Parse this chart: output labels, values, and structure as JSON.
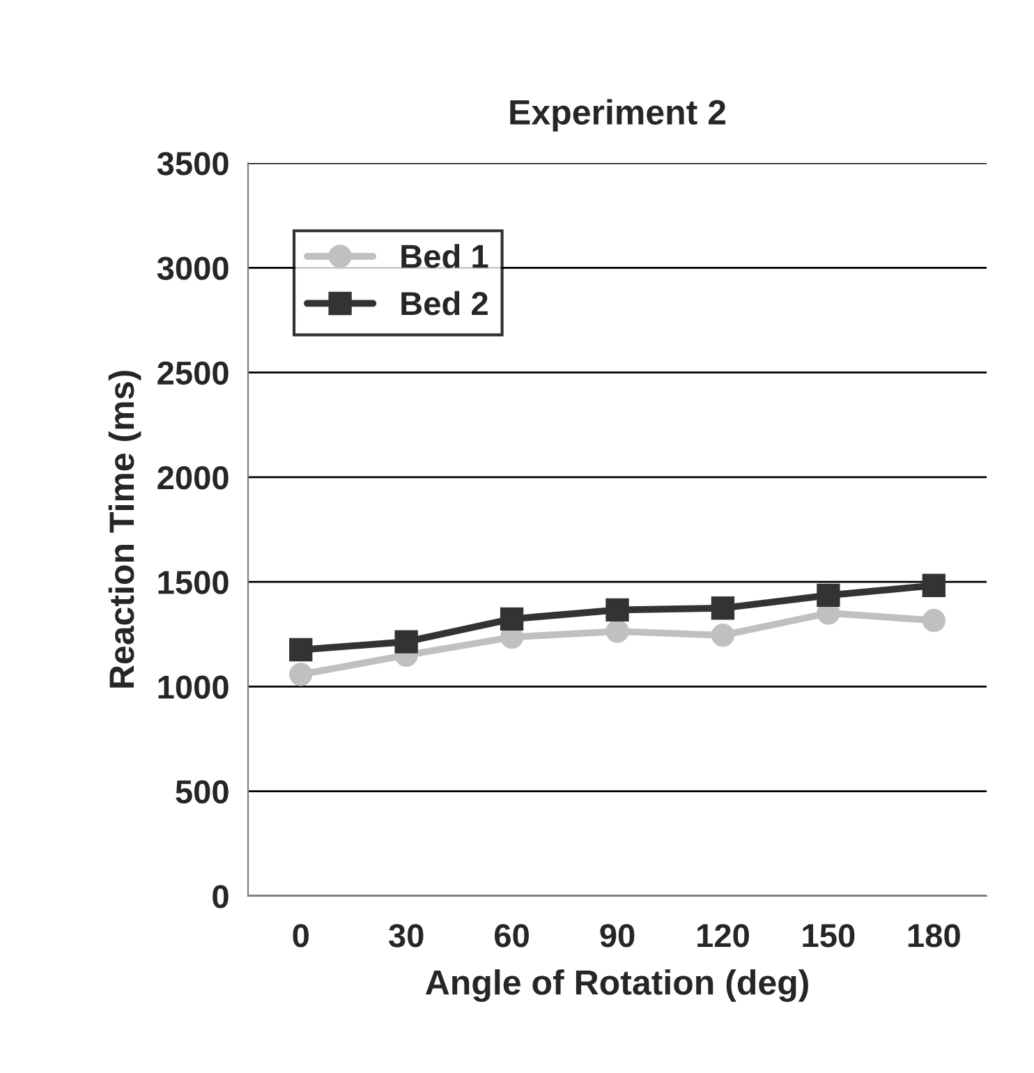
{
  "chart_data": {
    "type": "line",
    "title": "Experiment 2",
    "xlabel": "Angle of Rotation (deg)",
    "ylabel": "Reaction Time (ms)",
    "categories": [
      "0",
      "30",
      "60",
      "90",
      "120",
      "150",
      "180"
    ],
    "series": [
      {
        "name": "Bed 1",
        "color": "#c0c0c0",
        "marker": "circle",
        "values": [
          1058,
          1150,
          1236,
          1264,
          1245,
          1351,
          1316
        ]
      },
      {
        "name": "Bed 2",
        "color": "#333333",
        "marker": "square",
        "values": [
          1176,
          1214,
          1323,
          1366,
          1375,
          1436,
          1483
        ]
      }
    ],
    "ylim": [
      0,
      3500
    ],
    "yticks": [
      0,
      500,
      1000,
      1500,
      2000,
      2500,
      3000,
      3500
    ],
    "grid": "y",
    "legend": "top left",
    "line_style": "solid"
  }
}
